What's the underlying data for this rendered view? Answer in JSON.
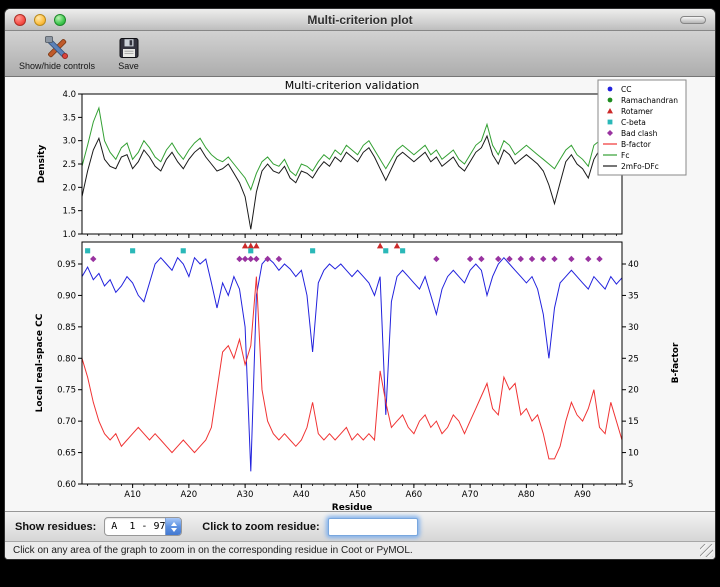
{
  "window": {
    "title": "Multi-criterion plot"
  },
  "toolbar": {
    "show_hide_label": "Show/hide controls",
    "save_label": "Save"
  },
  "controls": {
    "show_residues_label": "Show residues:",
    "residue_range_value": "A  1 - 97",
    "zoom_label": "Click to zoom residue:",
    "zoom_value": ""
  },
  "status": {
    "message": "Click on any area of the graph to zoom in on the corresponding residue in Coot or PyMOL."
  },
  "chart_data": {
    "type": "line",
    "title": "Multi-criterion validation",
    "x": {
      "label": "Residue",
      "n": 97,
      "tick_vals": [
        10,
        20,
        30,
        40,
        50,
        60,
        70,
        80,
        90
      ],
      "tick_labels": [
        "A10",
        "A20",
        "A30",
        "A40",
        "A50",
        "A60",
        "A70",
        "A80",
        "A90"
      ]
    },
    "legend": [
      {
        "label": "CC",
        "shape": "circle",
        "color": "#2222dd"
      },
      {
        "label": "Ramachandran",
        "shape": "circle",
        "color": "#1f8c1f"
      },
      {
        "label": "Rotamer",
        "shape": "triangle",
        "color": "#cc2929"
      },
      {
        "label": "C-beta",
        "shape": "square",
        "color": "#2ab8b8"
      },
      {
        "label": "Bad clash",
        "shape": "diamond",
        "color": "#9933a0"
      },
      {
        "label": "B-factor",
        "shape": "line",
        "color": "#f03333"
      },
      {
        "label": "Fc",
        "shape": "line",
        "color": "#33a033"
      },
      {
        "label": "2mFo-DFc",
        "shape": "line",
        "color": "#1a1a1a"
      }
    ],
    "subplots": [
      {
        "ylabel": "Density",
        "ylim": [
          1.0,
          4.0
        ],
        "ytick_vals": [
          4.0,
          3.5,
          3.0,
          2.5,
          2.0,
          1.5,
          1.0
        ],
        "ytick_labels": [
          "4.0",
          "3.5",
          "3.0",
          "2.5",
          "2.0",
          "1.5",
          "1.0"
        ],
        "series": [
          {
            "name": "Fc",
            "color": "#33a033",
            "values": [
              2.45,
              2.9,
              3.4,
              3.7,
              3.0,
              2.75,
              2.6,
              2.85,
              2.95,
              2.6,
              2.75,
              3.0,
              2.85,
              2.65,
              2.55,
              2.8,
              2.95,
              2.75,
              2.6,
              2.8,
              2.95,
              3.05,
              2.85,
              2.7,
              2.6,
              2.55,
              2.65,
              2.5,
              2.35,
              2.2,
              1.95,
              2.3,
              2.55,
              2.65,
              2.5,
              2.45,
              2.6,
              2.35,
              2.25,
              2.5,
              2.45,
              2.35,
              2.55,
              2.7,
              2.6,
              2.8,
              2.7,
              2.9,
              2.8,
              2.7,
              2.9,
              3.0,
              2.8,
              2.6,
              2.4,
              2.6,
              2.8,
              2.9,
              2.8,
              2.7,
              2.8,
              2.9,
              2.7,
              2.8,
              2.6,
              2.7,
              2.8,
              2.6,
              2.5,
              2.7,
              2.9,
              3.0,
              3.35,
              2.9,
              2.7,
              3.0,
              2.9,
              2.7,
              2.8,
              2.9,
              2.8,
              2.7,
              2.6,
              2.5,
              2.4,
              2.6,
              2.8,
              2.9,
              2.7,
              2.6,
              2.45,
              2.9,
              3.0,
              2.8,
              3.15,
              3.4,
              2.9
            ]
          },
          {
            "name": "2mFo-DFc",
            "color": "#1a1a1a",
            "values": [
              1.8,
              2.35,
              2.8,
              3.05,
              2.6,
              2.45,
              2.4,
              2.65,
              2.7,
              2.4,
              2.55,
              2.8,
              2.65,
              2.45,
              2.35,
              2.6,
              2.75,
              2.55,
              2.4,
              2.6,
              2.75,
              2.85,
              2.65,
              2.5,
              2.35,
              2.4,
              2.5,
              2.3,
              2.1,
              1.8,
              1.1,
              1.9,
              2.35,
              2.5,
              2.35,
              2.3,
              2.45,
              2.2,
              2.1,
              2.35,
              2.3,
              2.2,
              2.4,
              2.55,
              2.45,
              2.65,
              2.55,
              2.75,
              2.65,
              2.55,
              2.75,
              2.85,
              2.65,
              2.4,
              2.15,
              2.4,
              2.65,
              2.75,
              2.65,
              2.55,
              2.65,
              2.75,
              2.55,
              2.65,
              2.45,
              2.55,
              2.65,
              2.45,
              2.35,
              2.55,
              2.75,
              2.85,
              3.1,
              2.7,
              2.5,
              2.8,
              2.7,
              2.5,
              2.6,
              2.7,
              2.6,
              2.5,
              2.35,
              2.05,
              1.65,
              2.1,
              2.55,
              2.7,
              2.5,
              2.4,
              2.2,
              2.6,
              2.8,
              2.6,
              2.9,
              3.1,
              2.65
            ]
          }
        ]
      },
      {
        "ylabel": "Local real-space CC",
        "y2label": "B-factor",
        "ylim": [
          0.6,
          0.985
        ],
        "y2lim": [
          5,
          43.5
        ],
        "ytick_vals": [
          0.95,
          0.9,
          0.85,
          0.8,
          0.75,
          0.7,
          0.65,
          0.6
        ],
        "ytick_labels": [
          "0.95",
          "0.90",
          "0.85",
          "0.80",
          "0.75",
          "0.70",
          "0.65",
          "0.60"
        ],
        "y2tick_vals": [
          40,
          35,
          30,
          25,
          20,
          15,
          10,
          5
        ],
        "y2tick_labels": [
          "40",
          "35",
          "30",
          "25",
          "20",
          "15",
          "10",
          "5"
        ],
        "series": [
          {
            "name": "CC",
            "color": "#2222dd",
            "values": [
              0.93,
              0.945,
              0.925,
              0.935,
              0.915,
              0.925,
              0.905,
              0.915,
              0.93,
              0.92,
              0.9,
              0.89,
              0.92,
              0.95,
              0.96,
              0.95,
              0.94,
              0.96,
              0.95,
              0.93,
              0.96,
              0.95,
              0.958,
              0.92,
              0.88,
              0.92,
              0.9,
              0.93,
              0.91,
              0.85,
              0.62,
              0.9,
              0.95,
              0.96,
              0.952,
              0.94,
              0.95,
              0.942,
              0.93,
              0.94,
              0.9,
              0.81,
              0.92,
              0.94,
              0.95,
              0.942,
              0.95,
              0.94,
              0.93,
              0.94,
              0.93,
              0.92,
              0.9,
              0.93,
              0.71,
              0.89,
              0.93,
              0.94,
              0.93,
              0.92,
              0.91,
              0.93,
              0.9,
              0.87,
              0.91,
              0.93,
              0.94,
              0.93,
              0.92,
              0.94,
              0.95,
              0.94,
              0.9,
              0.93,
              0.95,
              0.96,
              0.95,
              0.94,
              0.93,
              0.92,
              0.93,
              0.91,
              0.87,
              0.8,
              0.88,
              0.92,
              0.93,
              0.94,
              0.93,
              0.92,
              0.91,
              0.93,
              0.92,
              0.91,
              0.93,
              0.918,
              0.928
            ]
          },
          {
            "name": "B-factor",
            "axis": "right",
            "color": "#f03333",
            "values": [
              25,
              22,
              18,
              15,
              13,
              12,
              13,
              11,
              12,
              13,
              14,
              13,
              12,
              13,
              12,
              11,
              10,
              11,
              12,
              11,
              10,
              11,
              12,
              14,
              20,
              26,
              27,
              25,
              28,
              24,
              27,
              38,
              20,
              15,
              13,
              12,
              13,
              12,
              11,
              12,
              14,
              18,
              13,
              12,
              13,
              12,
              13,
              14,
              12,
              13,
              12,
              13,
              12,
              23,
              18,
              14,
              15,
              16,
              14,
              13,
              15,
              16,
              14,
              15,
              13,
              14,
              16,
              15,
              13,
              15,
              17,
              19,
              21,
              17,
              16,
              22,
              20,
              21,
              16,
              17,
              15,
              16,
              13,
              9,
              9,
              11,
              15,
              18,
              16,
              15,
              17,
              20,
              14,
              13,
              18,
              15,
              12
            ]
          }
        ],
        "markers": [
          {
            "name": "Rotamer",
            "shape": "triangle",
            "color": "#cc2929",
            "level": 0.979,
            "residues": [
              30,
              31,
              32,
              54,
              57
            ]
          },
          {
            "name": "C-beta",
            "shape": "square",
            "color": "#2ab8b8",
            "level": 0.971,
            "residues": [
              2,
              10,
              19,
              31,
              42,
              55,
              58
            ]
          },
          {
            "name": "Bad clash",
            "shape": "diamond",
            "color": "#9933a0",
            "level": 0.958,
            "residues": [
              3,
              29,
              30,
              31,
              32,
              34,
              36,
              64,
              70,
              72,
              75,
              77,
              79,
              81,
              83,
              85,
              88,
              91,
              93
            ]
          },
          {
            "name": "Ramachandran",
            "shape": "circle",
            "color": "#1f8c1f",
            "level": 0.979,
            "residues": []
          }
        ]
      }
    ]
  }
}
